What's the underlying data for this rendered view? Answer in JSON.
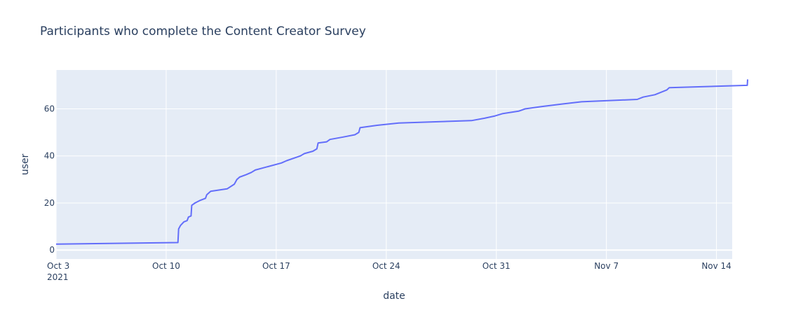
{
  "chart_data": {
    "type": "line",
    "title": "Participants who complete the Content Creator Survey",
    "xlabel": "date",
    "ylabel": "user",
    "xlim": [
      "2021-10-03",
      "2021-11-15"
    ],
    "ylim": [
      -3.8,
      76.5
    ],
    "x_ticks": [
      {
        "date": "2021-10-03",
        "label": "Oct 3",
        "sublabel": "2021"
      },
      {
        "date": "2021-10-10",
        "label": "Oct 10"
      },
      {
        "date": "2021-10-17",
        "label": "Oct 17"
      },
      {
        "date": "2021-10-24",
        "label": "Oct 24"
      },
      {
        "date": "2021-10-31",
        "label": "Oct 31"
      },
      {
        "date": "2021-11-07",
        "label": "Nov 7"
      },
      {
        "date": "2021-11-14",
        "label": "Nov 14"
      }
    ],
    "y_ticks": [
      {
        "value": 0,
        "label": "0"
      },
      {
        "value": 20,
        "label": "20"
      },
      {
        "value": 40,
        "label": "40"
      },
      {
        "value": 60,
        "label": "60"
      }
    ],
    "grid": true,
    "background": "#e5ecf6",
    "line_color": "#636efa",
    "series": [
      {
        "x": [
          "2021-10-03 00:00",
          "2021-10-10 18:00",
          "2021-10-10 19:00",
          "2021-10-10 22:00",
          "2021-10-11 03:00",
          "2021-10-11 08:00",
          "2021-10-11 10:00",
          "2021-10-11 14:00",
          "2021-10-11 15:00",
          "2021-10-11 20:00",
          "2021-10-12 03:00",
          "2021-10-12 12:00",
          "2021-10-12 14:00",
          "2021-10-12 20:00",
          "2021-10-13 21:00",
          "2021-10-14 08:00",
          "2021-10-14 12:00",
          "2021-10-14 14:00",
          "2021-10-14 16:00",
          "2021-10-15 02:00",
          "2021-10-15 10:00",
          "2021-10-15 16:00",
          "2021-10-17 08:00",
          "2021-10-17 16:00",
          "2021-10-18 13:00",
          "2021-10-18 19:00",
          "2021-10-19 08:00",
          "2021-10-19 14:00",
          "2021-10-19 16:00",
          "2021-10-20 05:00",
          "2021-10-20 10:00",
          "2021-10-21 06:00",
          "2021-10-22 00:00",
          "2021-10-22 06:00",
          "2021-10-22 08:00",
          "2021-10-23 10:00",
          "2021-10-24 19:00",
          "2021-10-29 10:00",
          "2021-10-30 06:00",
          "2021-10-30 22:00",
          "2021-10-31 10:00",
          "2021-11-01 10:00",
          "2021-11-01 20:00",
          "2021-11-02 22:00",
          "2021-11-04 03:00",
          "2021-11-05 10:00",
          "2021-11-08 23:00",
          "2021-11-09 08:00",
          "2021-11-10 02:00",
          "2021-11-10 20:00",
          "2021-11-11 00:00",
          "2021-11-15 23:00",
          "2021-11-15 23:30"
        ],
        "y": [
          2.5,
          3.2,
          9,
          10.5,
          12,
          12.5,
          14,
          14.5,
          19,
          20,
          21,
          22,
          23.5,
          25,
          26,
          28,
          30,
          30.5,
          31,
          32,
          33,
          34,
          37,
          38,
          40,
          41,
          42,
          43,
          45.5,
          46,
          47,
          48,
          49,
          50,
          52,
          53,
          54,
          55,
          56,
          57,
          58,
          59,
          60,
          61,
          62,
          63,
          64,
          65,
          66,
          68,
          69,
          70,
          72.5
        ]
      }
    ]
  }
}
